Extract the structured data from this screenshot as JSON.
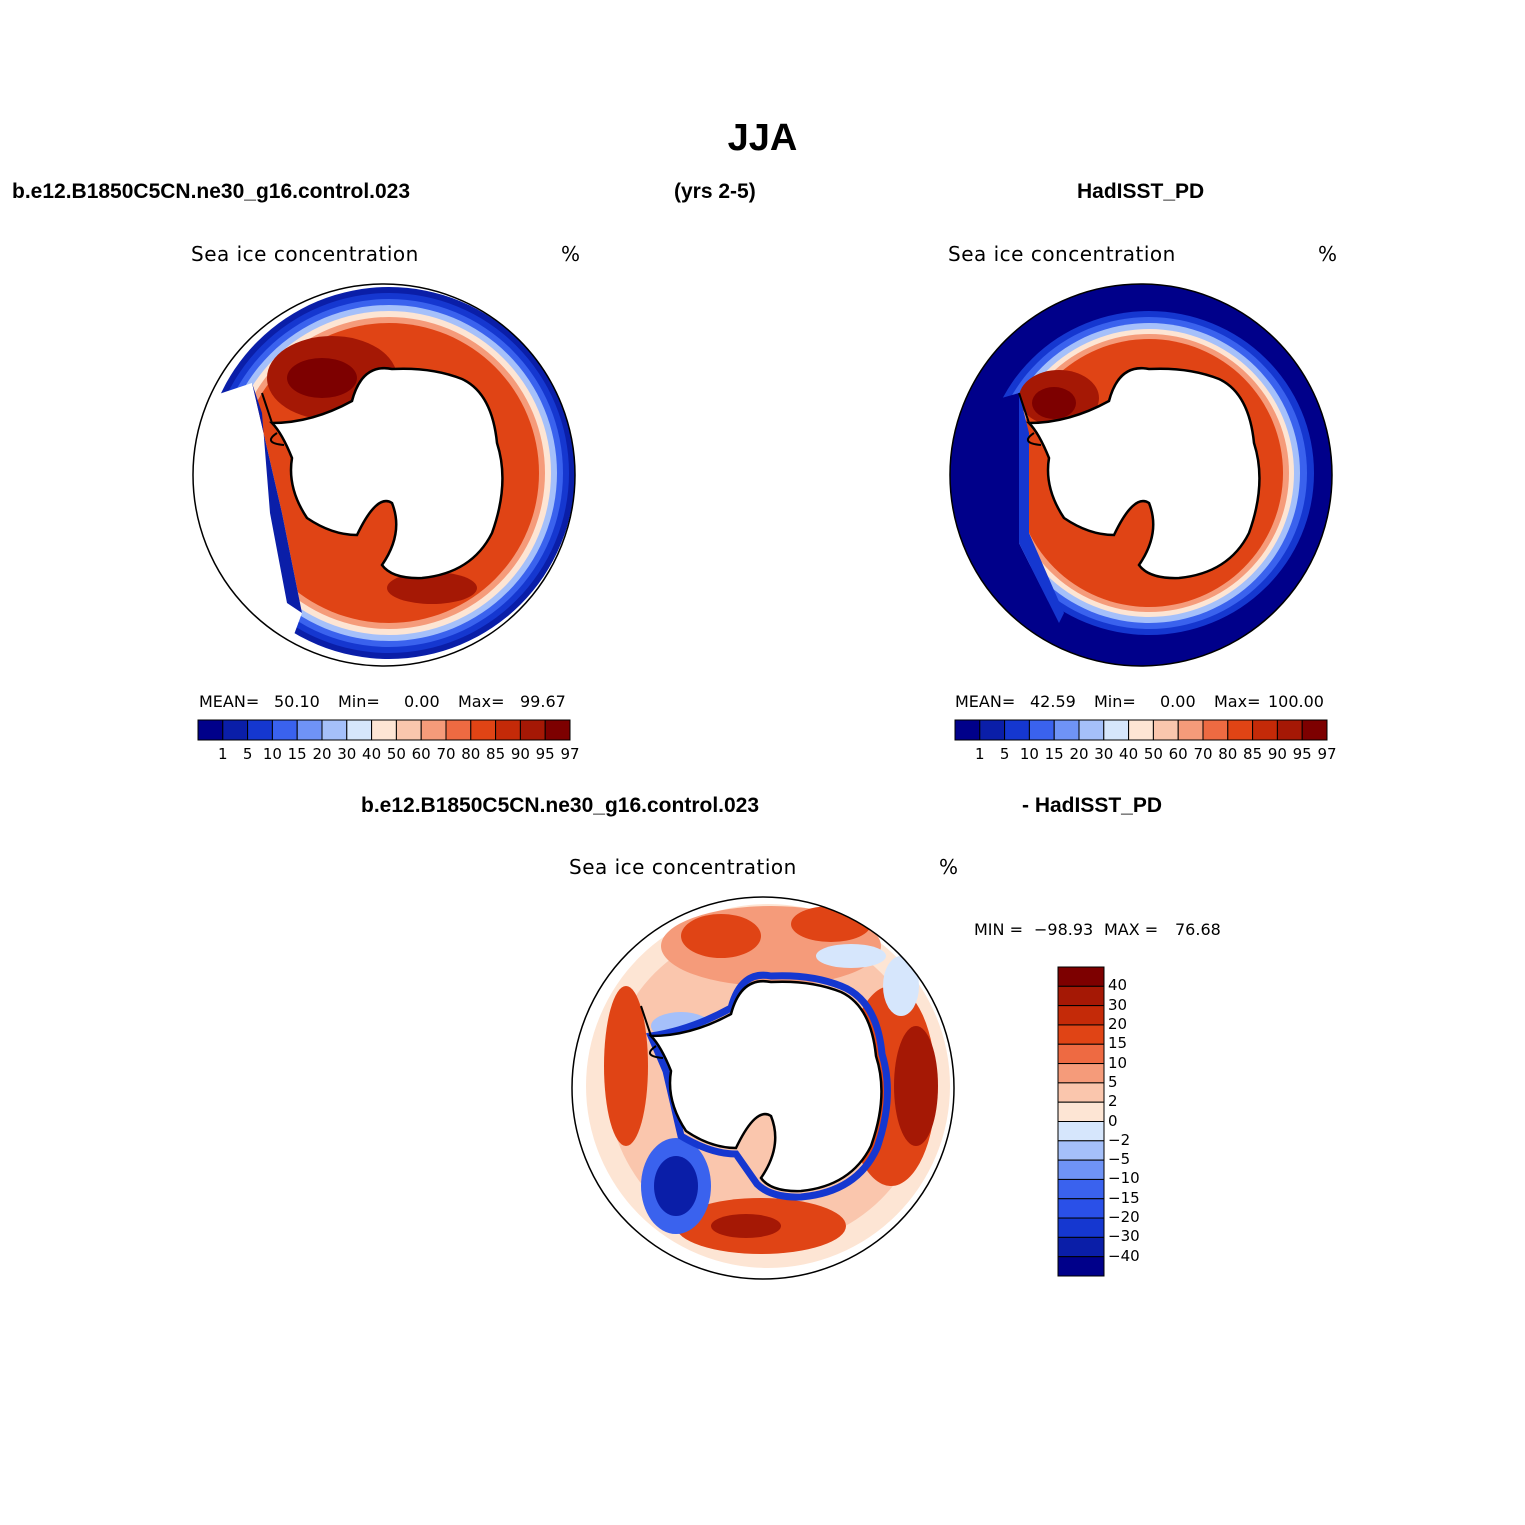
{
  "title": "JJA",
  "header": {
    "case": "b.e12.B1850C5CN.ne30_g16.control.023",
    "years": "(yrs 2-5)",
    "obs": "HadISST_PD"
  },
  "diff_header": {
    "case": "b.e12.B1850C5CN.ne30_g16.control.023",
    "obs": "- HadISST_PD"
  },
  "colors": {
    "conc": [
      "#00008a",
      "#0a1ea8",
      "#1537d0",
      "#3a62ee",
      "#6f93f6",
      "#a5c0fa",
      "#d6e6fc",
      "#fde5d4",
      "#fac6ad",
      "#f59b7a",
      "#ee6a42",
      "#e04415",
      "#c42a08",
      "#a51805",
      "#7d0000"
    ],
    "diff": [
      "#00008a",
      "#0a1ea8",
      "#1537d0",
      "#2a50e8",
      "#3a62ee",
      "#6f93f6",
      "#a5c0fa",
      "#d6e6fc",
      "#fde5d4",
      "#fac6ad",
      "#f59b7a",
      "#ee6a42",
      "#e04415",
      "#c42a08",
      "#a51805",
      "#7d0000"
    ]
  },
  "panels": {
    "model": {
      "title": "Sea ice concentration",
      "units": "%",
      "mean_label": "MEAN=",
      "mean": "50.10",
      "min_label": "Min=",
      "min": "0.00",
      "max_label": "Max=",
      "max": "99.67",
      "levels": [
        "1",
        "5",
        "10",
        "15",
        "20",
        "30",
        "40",
        "50",
        "60",
        "70",
        "80",
        "85",
        "90",
        "95",
        "97"
      ]
    },
    "obs": {
      "title": "Sea ice concentration",
      "units": "%",
      "mean_label": "MEAN=",
      "mean": "42.59",
      "min_label": "Min=",
      "min": "0.00",
      "max_label": "Max=",
      "max": "100.00",
      "levels": [
        "1",
        "5",
        "10",
        "15",
        "20",
        "30",
        "40",
        "50",
        "60",
        "70",
        "80",
        "85",
        "90",
        "95",
        "97"
      ]
    },
    "diff": {
      "title": "Sea ice concentration",
      "units": "%",
      "min_label": "MIN =",
      "min": "−98.93",
      "max_label": "MAX =",
      "max": "76.68",
      "levels": [
        "40",
        "30",
        "20",
        "15",
        "10",
        "5",
        "2",
        "0",
        "−2",
        "−5",
        "−10",
        "−15",
        "−20",
        "−30",
        "−40"
      ]
    }
  }
}
